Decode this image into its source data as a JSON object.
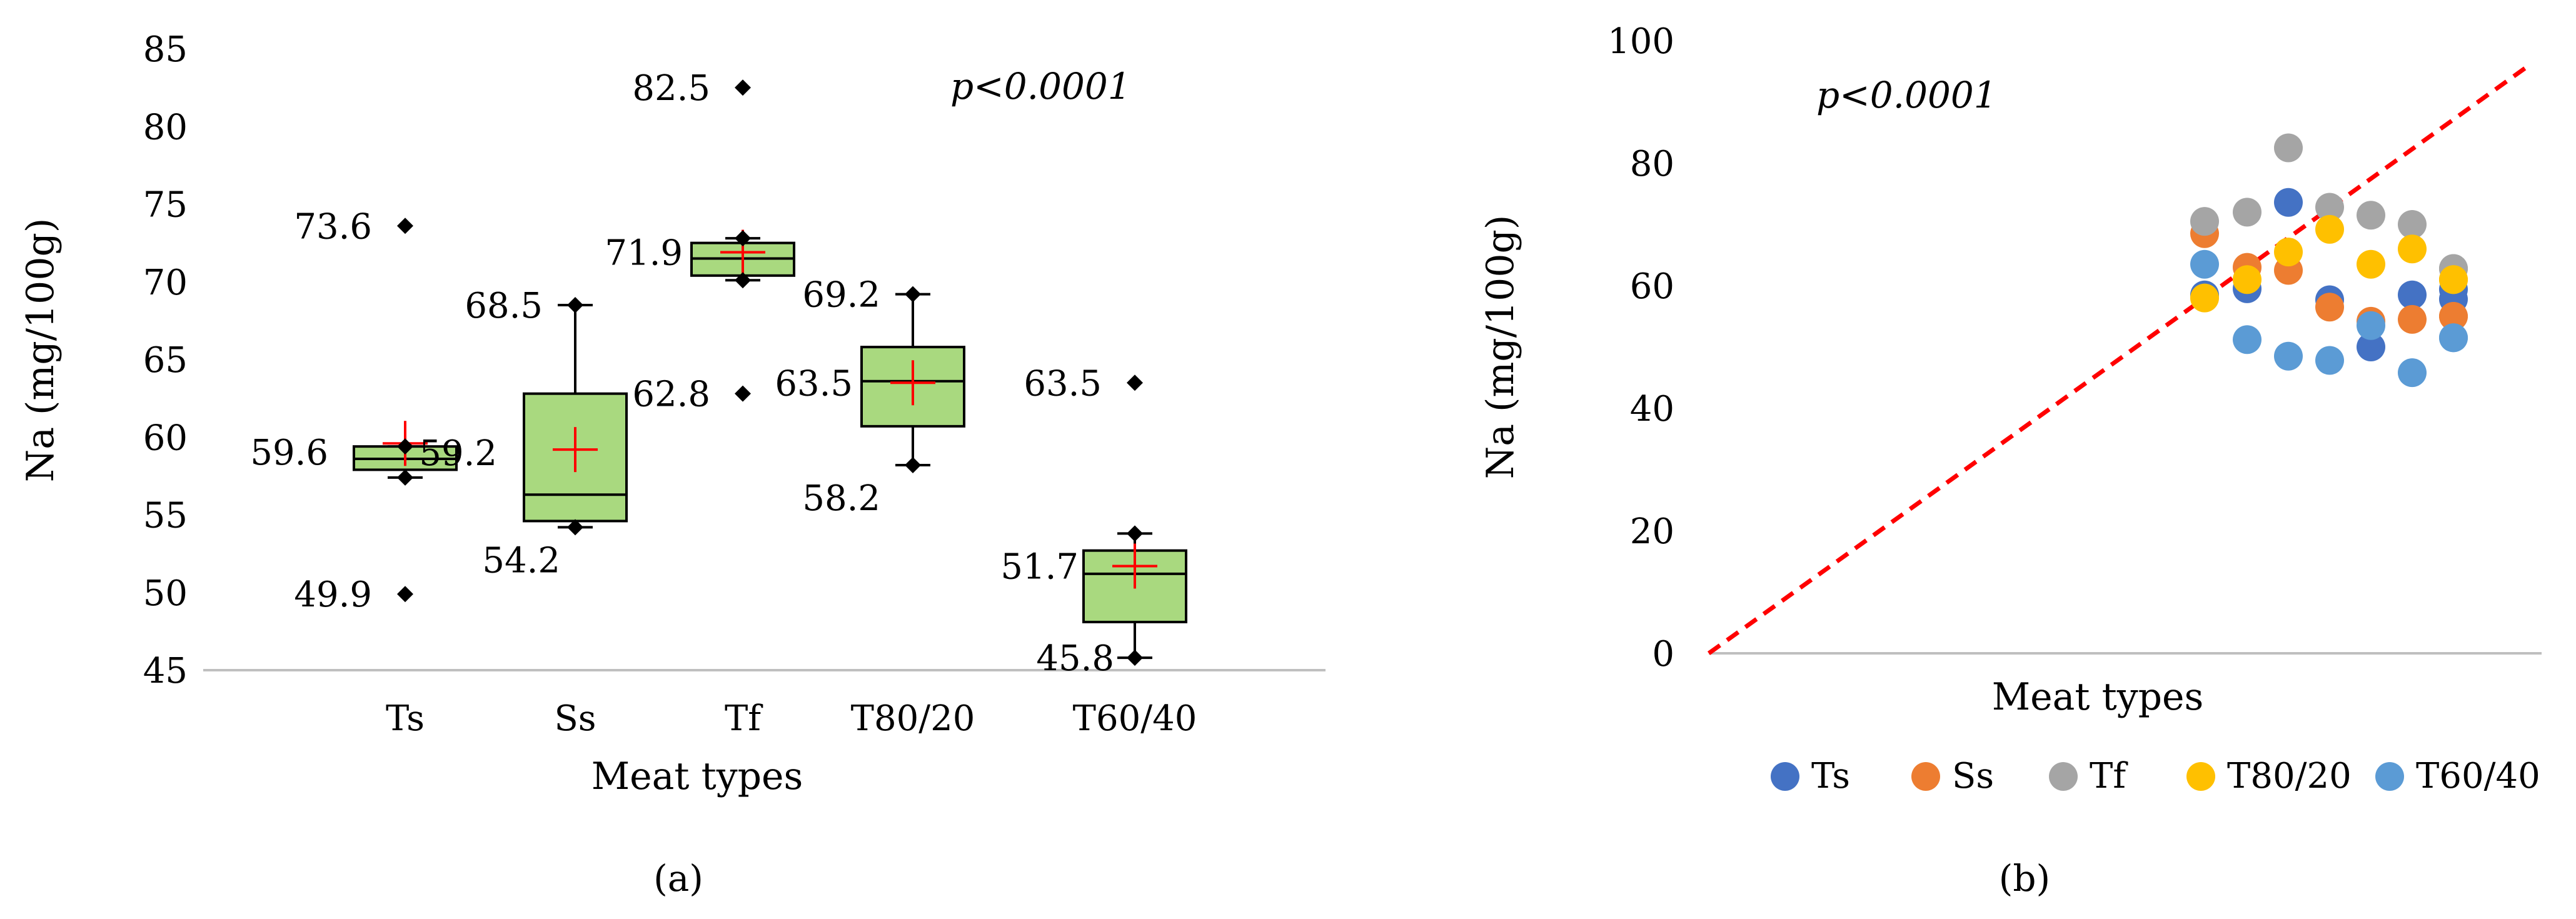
{
  "chart_data": [
    {
      "panel_label": "(a)",
      "type": "boxplot",
      "xlabel": "Meat types",
      "ylabel": "Na (mg/100g)",
      "ylim": [
        45,
        85
      ],
      "yticks": [
        45,
        50,
        55,
        60,
        65,
        70,
        75,
        80,
        85
      ],
      "annotation": "p<0.0001",
      "categories": [
        "Ts",
        "Ss",
        "Tf",
        "T80/20",
        "T60/40"
      ],
      "boxes": [
        {
          "category": "Ts",
          "q1": 57.9,
          "median": 58.6,
          "q3": 59.4,
          "whisker_low": 57.4,
          "whisker_high": 59.4,
          "mean": 59.6,
          "mean_label": "59.6",
          "outliers": [
            73.6,
            49.9
          ],
          "outlier_labels": [
            "73.6",
            "49.9"
          ]
        },
        {
          "category": "Ss",
          "q1": 54.6,
          "median": 56.3,
          "q3": 62.8,
          "whisker_low": 54.2,
          "whisker_high": 68.5,
          "mean": 59.2,
          "mean_label": "59.2",
          "extreme_labels": [
            "68.5",
            "54.2"
          ]
        },
        {
          "category": "Tf",
          "q1": 70.4,
          "median": 71.5,
          "q3": 72.5,
          "whisker_low": 70.1,
          "whisker_high": 72.8,
          "mean": 71.9,
          "mean_label": "71.9",
          "outliers": [
            82.5,
            62.8
          ],
          "outlier_labels": [
            "82.5",
            "62.8"
          ]
        },
        {
          "category": "T80/20",
          "q1": 60.7,
          "median": 63.6,
          "q3": 65.8,
          "whisker_low": 58.2,
          "whisker_high": 69.2,
          "mean": 63.5,
          "mean_label": "63.5",
          "extreme_labels": [
            "69.2",
            "58.2"
          ]
        },
        {
          "category": "T60/40",
          "q1": 48.1,
          "median": 51.2,
          "q3": 52.7,
          "whisker_low": 45.8,
          "whisker_high": 53.8,
          "mean": 51.7,
          "mean_label": "51.7",
          "outliers": [
            63.5
          ],
          "outlier_labels": [
            "63.5"
          ],
          "extreme_labels": [
            "45.8"
          ]
        }
      ],
      "colors": {
        "box_fill": "#a9d97f",
        "box_stroke": "#000000",
        "mean_marker": "#ff0000",
        "outlier": "#000000"
      }
    },
    {
      "panel_label": "(b)",
      "type": "scatter",
      "xlabel": "Meat types",
      "ylabel": "Na (mg/100g)",
      "ylim": [
        0,
        100
      ],
      "yticks": [
        0,
        20,
        40,
        60,
        80,
        100
      ],
      "annotation": "p<0.0001",
      "legend_position": "bottom",
      "reference_line": {
        "style": "dashed",
        "color": "#ff0000"
      },
      "x_positions": [
        1,
        2,
        3,
        4,
        5,
        6,
        7,
        8
      ],
      "series": [
        {
          "name": "Ts",
          "color": "#4472c4",
          "values": [
            58.5,
            59.5,
            73.6,
            57.7,
            50.0,
            58.5,
            57.8,
            59.4
          ]
        },
        {
          "name": "Ss",
          "color": "#ed7d31",
          "values": [
            68.5,
            63.0,
            62.5,
            56.5,
            54.2,
            54.5,
            55.0,
            55.0
          ]
        },
        {
          "name": "Tf",
          "color": "#a5a5a5",
          "values": [
            70.5,
            72.0,
            82.5,
            72.8,
            71.5,
            70.0,
            62.8,
            62.8
          ]
        },
        {
          "name": "T80/20",
          "color": "#ffc000",
          "values": [
            58.0,
            61.0,
            65.5,
            69.2,
            63.5,
            66.0,
            61.0,
            61.0
          ]
        },
        {
          "name": "T60/40",
          "color": "#5b9bd5",
          "values": [
            63.5,
            51.2,
            48.5,
            47.8,
            53.5,
            45.8,
            51.5,
            51.5
          ]
        }
      ]
    }
  ]
}
